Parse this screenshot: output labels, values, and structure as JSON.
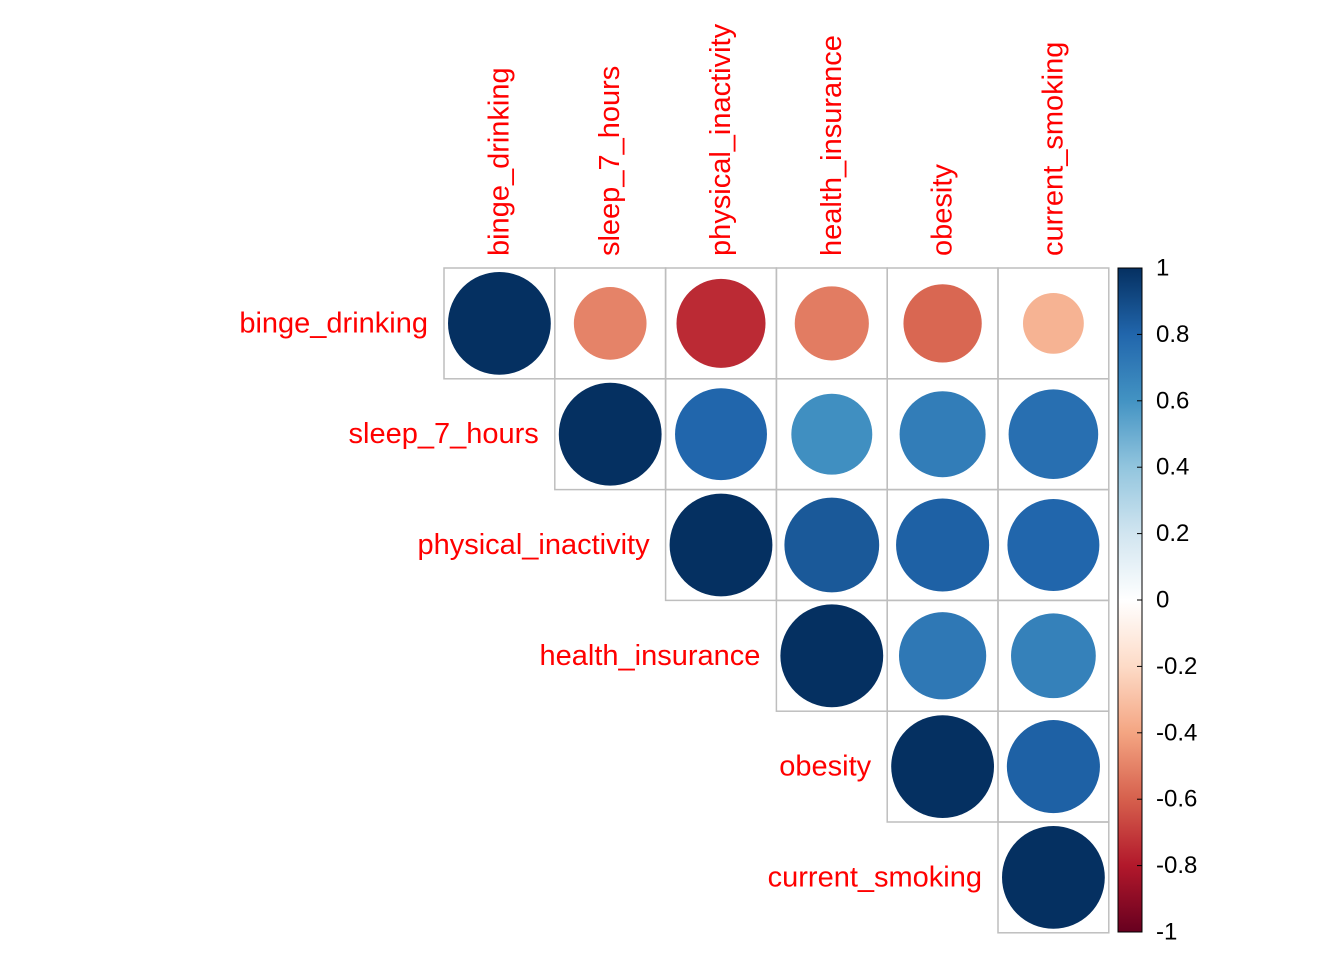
{
  "chart_data": {
    "type": "heatmap",
    "style": "circle correlation matrix (upper triangle)",
    "variables": [
      "binge_drinking",
      "sleep_7_hours",
      "physical_inactivity",
      "health_insurance",
      "obesity",
      "current_smoking"
    ],
    "matrix": [
      [
        1.0,
        -0.5,
        -0.75,
        -0.52,
        -0.58,
        -0.35
      ],
      [
        null,
        1.0,
        0.8,
        0.62,
        0.7,
        0.76
      ],
      [
        null,
        null,
        1.0,
        0.85,
        0.82,
        0.8
      ],
      [
        null,
        null,
        null,
        1.0,
        0.72,
        0.68
      ],
      [
        null,
        null,
        null,
        null,
        1.0,
        0.82
      ],
      [
        null,
        null,
        null,
        null,
        null,
        1.0
      ]
    ],
    "colorbar": {
      "range": [
        -1,
        1
      ],
      "ticks": [
        "1",
        "0.8",
        "0.6",
        "0.4",
        "0.2",
        "0",
        "-0.2",
        "-0.4",
        "-0.6",
        "-0.8",
        "-1"
      ]
    },
    "colors": {
      "negative": "#67001F",
      "neutral": "#FFFFFF",
      "positive": "#053061",
      "label": "#FF0000",
      "grid": "#BEBEBE"
    }
  }
}
